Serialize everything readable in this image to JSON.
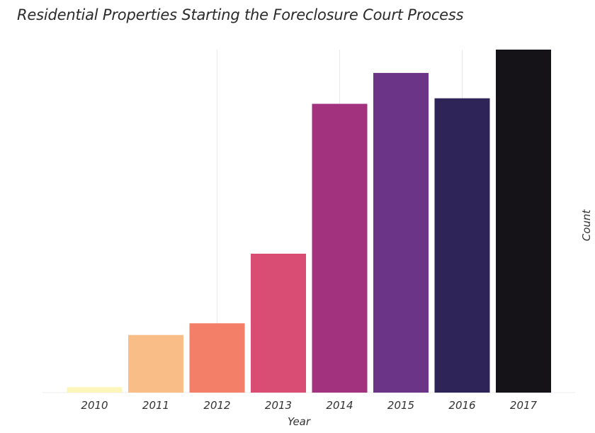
{
  "chart_data": {
    "type": "bar",
    "title": "Residential Properties Starting the Foreclosure Court Process",
    "xlabel": "Year",
    "ylabel": "Count",
    "categories": [
      "2010",
      "2011",
      "2012",
      "2013",
      "2014",
      "2015",
      "2016",
      "2017"
    ],
    "values": [
      16,
      168,
      202,
      405,
      842,
      932,
      858,
      1000
    ],
    "ylim": [
      0,
      1000
    ],
    "colors": [
      "#fcf6bb",
      "#f9bd87",
      "#f47f69",
      "#d94c73",
      "#a2327d",
      "#6c3486",
      "#2e2458",
      "#151318"
    ],
    "grid": "vertical",
    "y_ticks_shown": false,
    "legend": "none"
  }
}
